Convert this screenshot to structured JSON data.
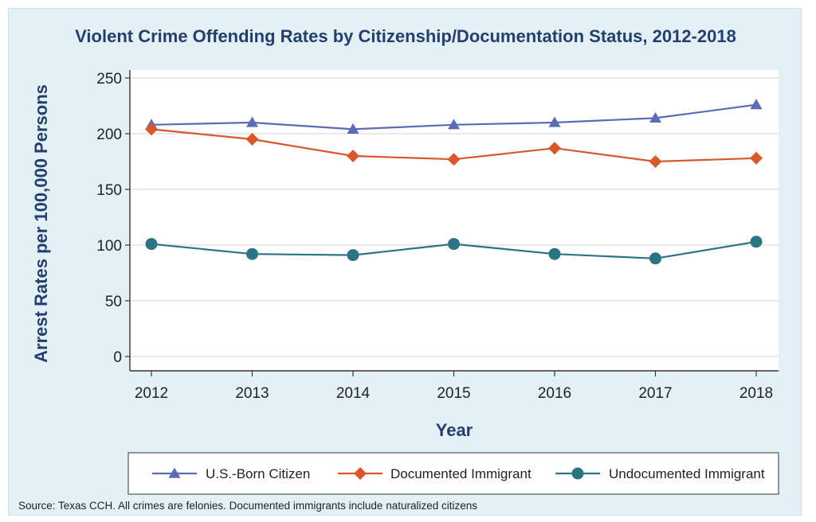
{
  "chart_data": {
    "type": "line",
    "title": "Violent Crime Offending Rates by Citizenship/Documentation Status, 2012-2018",
    "xlabel": "Year",
    "ylabel": "Arrest Rates per 100,000 Persons",
    "x": [
      "2012",
      "2013",
      "2014",
      "2015",
      "2016",
      "2017",
      "2018"
    ],
    "y_ticks": [
      "0",
      "50",
      "100",
      "150",
      "200",
      "250"
    ],
    "ylim": [
      0,
      250
    ],
    "grid": "horizontal",
    "legend_position": "bottom",
    "series": [
      {
        "name": "U.S.-Born Citizen",
        "marker": "triangle",
        "color": "#5b6bb5",
        "values": [
          208,
          210,
          204,
          208,
          210,
          214,
          226
        ]
      },
      {
        "name": "Documented Immigrant",
        "marker": "diamond",
        "color": "#d9572b",
        "values": [
          204,
          195,
          180,
          177,
          187,
          175,
          178
        ]
      },
      {
        "name": "Undocumented Immigrant",
        "marker": "circle",
        "color": "#2b7484",
        "values": [
          101,
          92,
          91,
          101,
          92,
          88,
          103
        ]
      }
    ],
    "source": "Source: Texas CCH. All crimes are felonies. Documented immigrants include naturalized citizens"
  }
}
